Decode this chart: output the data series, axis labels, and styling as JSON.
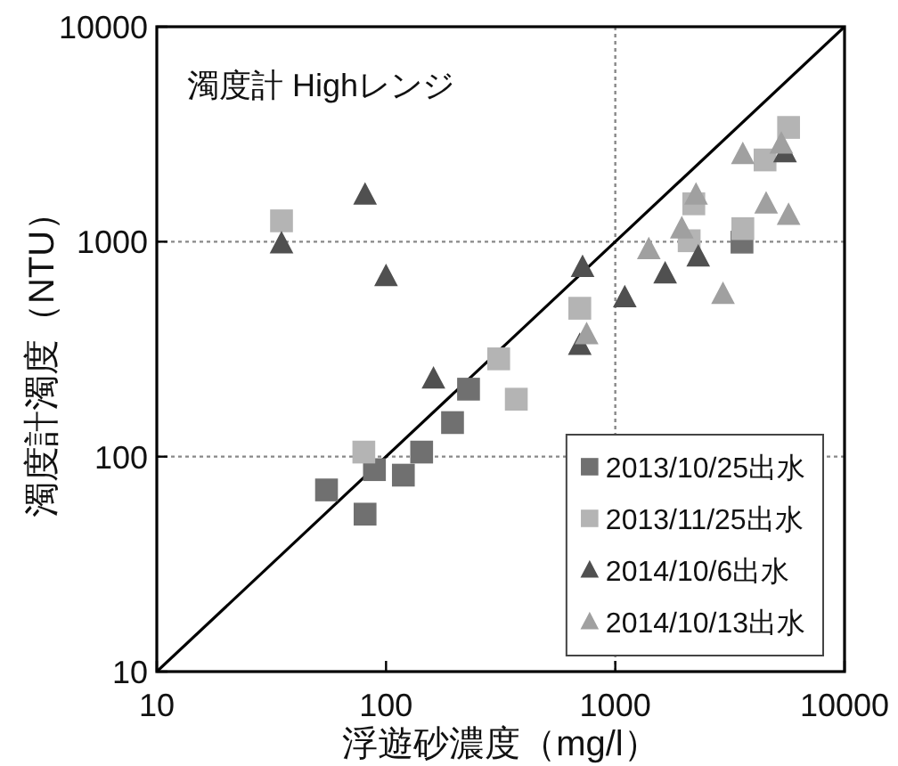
{
  "chart_data": {
    "type": "scatter",
    "title": "濁度計 Highレンジ",
    "xlabel": "浮遊砂濃度（mg/l）",
    "ylabel": "濁度計濁度（NTU）",
    "log": "xy",
    "xlim": [
      10,
      10000
    ],
    "ylim": [
      10,
      10000
    ],
    "xticks": [
      10,
      100,
      1000,
      10000
    ],
    "yticks": [
      10,
      100,
      1000,
      10000
    ],
    "legend": "bottom right",
    "ref_lines": [
      {
        "axis": "y",
        "value": 1000,
        "line_style": "dotted",
        "color": "#888888"
      },
      {
        "axis": "y",
        "value": 100,
        "line_style": "dotted",
        "color": "#888888"
      },
      {
        "axis": "x",
        "value": 1000,
        "line_style": "dotted",
        "color": "#888888"
      }
    ],
    "series": [
      {
        "name": "2013/10/25出水",
        "color": "#707070",
        "marker": "square",
        "x": [
          55,
          81,
          89,
          119,
          143,
          195,
          229,
          3570
        ],
        "values": [
          70,
          54,
          87,
          82,
          105,
          144,
          206,
          995
        ]
      },
      {
        "name": "2013/11/25出水",
        "color": "#b4b4b4",
        "marker": "square",
        "x": [
          35,
          80,
          310,
          370,
          700,
          2200,
          2100,
          3600,
          4500,
          5700
        ],
        "values": [
          1250,
          105,
          285,
          185,
          490,
          1500,
          1010,
          1150,
          2400,
          3400
        ]
      },
      {
        "name": "2014/10/6出水",
        "color": "#505050",
        "marker": "triangle",
        "x": [
          35,
          81,
          100,
          161,
          720,
          700,
          1650,
          2300,
          1100,
          5500
        ],
        "values": [
          980,
          1650,
          690,
          230,
          760,
          330,
          710,
          850,
          550,
          2600
        ]
      },
      {
        "name": "2014/10/13出水",
        "color": "#a0a0a0",
        "marker": "triangle",
        "x": [
          750,
          1400,
          1950,
          2250,
          2950,
          3600,
          4550,
          5700,
          5300
        ],
        "values": [
          370,
          920,
          1150,
          1650,
          570,
          2550,
          1500,
          1330,
          2850
        ]
      },
      {
        "type": "line",
        "color": "#000000",
        "x": [
          10,
          10000
        ],
        "values": [
          10,
          10000
        ]
      }
    ]
  }
}
